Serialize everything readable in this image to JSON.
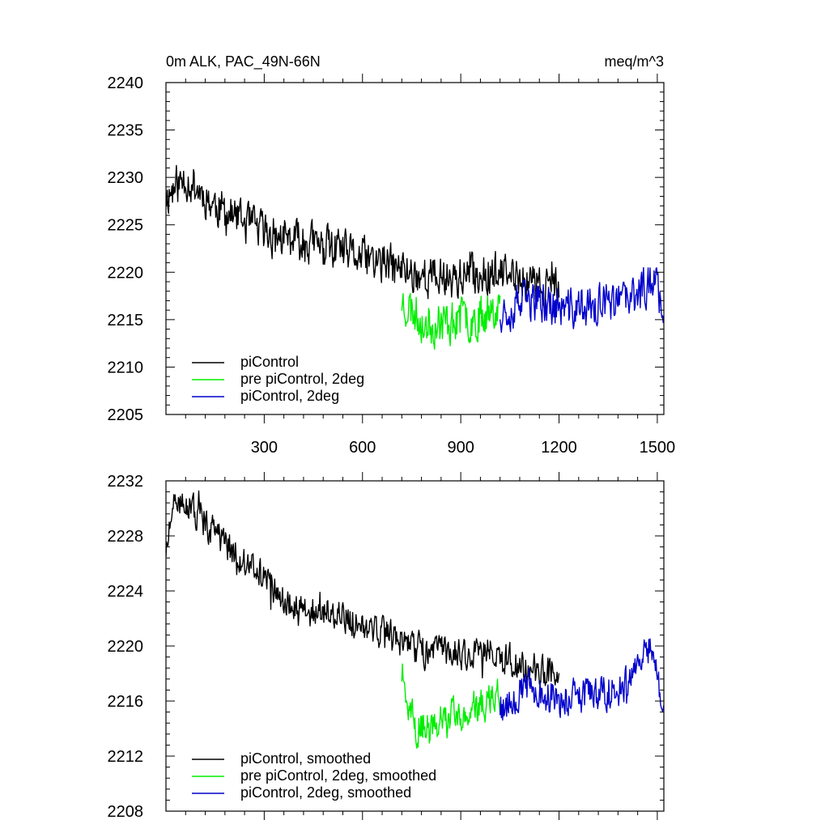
{
  "chart_data": [
    {
      "type": "line",
      "title_left": "0m ALK, PAC_49N-66N",
      "title_right": "meq/m^3",
      "xlim": [
        0,
        1520
      ],
      "ylim": [
        2205,
        2240
      ],
      "yticks": [
        2205,
        2210,
        2215,
        2220,
        2225,
        2230,
        2235,
        2240
      ],
      "xticks": [
        300,
        600,
        900,
        1200,
        1500
      ],
      "show_xtick_labels": true,
      "legend_position": "bottom-left",
      "series": [
        {
          "name": "piControl",
          "color": "#000000",
          "x_range": [
            0,
            1200
          ],
          "anchors": [
            [
              0,
              2228
            ],
            [
              60,
              2230
            ],
            [
              150,
              2227
            ],
            [
              250,
              2225
            ],
            [
              350,
              2223.5
            ],
            [
              450,
              2223
            ],
            [
              550,
              2222
            ],
            [
              650,
              2221
            ],
            [
              700,
              2220.5
            ],
            [
              800,
              2219.5
            ],
            [
              900,
              2219.5
            ],
            [
              1000,
              2220
            ],
            [
              1100,
              2219
            ],
            [
              1200,
              2218
            ]
          ],
          "noise": 2.6,
          "seed": 11
        },
        {
          "name": "pre piControl, 2deg",
          "color": "#00ee00",
          "x_range": [
            720,
            1020
          ],
          "anchors": [
            [
              720,
              2217
            ],
            [
              800,
              2214.5
            ],
            [
              900,
              2215
            ],
            [
              960,
              2215.5
            ],
            [
              1020,
              2217
            ]
          ],
          "noise": 2.8,
          "seed": 23
        },
        {
          "name": "piControl, 2deg",
          "color": "#0000cc",
          "x_range": [
            1020,
            1520
          ],
          "anchors": [
            [
              1020,
              2216
            ],
            [
              1120,
              2217
            ],
            [
              1220,
              2216
            ],
            [
              1320,
              2216.5
            ],
            [
              1420,
              2217
            ],
            [
              1490,
              2219.5
            ],
            [
              1520,
              2216
            ]
          ],
          "noise": 2.6,
          "seed": 37
        }
      ]
    },
    {
      "type": "line",
      "title_left": "",
      "title_right": "",
      "xlim": [
        0,
        1520
      ],
      "ylim": [
        2208,
        2232
      ],
      "yticks": [
        2208,
        2212,
        2216,
        2220,
        2224,
        2228,
        2232
      ],
      "xticks": [
        300,
        600,
        900,
        1200,
        1500
      ],
      "show_xtick_labels": false,
      "legend_position": "bottom-left",
      "series": [
        {
          "name": "piControl, smoothed",
          "color": "#000000",
          "x_range": [
            0,
            1200
          ],
          "anchors": [
            [
              0,
              2227
            ],
            [
              30,
              2230.5
            ],
            [
              100,
              2229.5
            ],
            [
              200,
              2227
            ],
            [
              300,
              2225
            ],
            [
              400,
              2222.5
            ],
            [
              500,
              2222.5
            ],
            [
              600,
              2221.5
            ],
            [
              700,
              2220.5
            ],
            [
              800,
              2219.5
            ],
            [
              900,
              2219.5
            ],
            [
              1000,
              2219.5
            ],
            [
              1100,
              2218.5
            ],
            [
              1200,
              2218
            ]
          ],
          "noise": 1.4,
          "seed": 51
        },
        {
          "name": "pre piControl, 2deg, smoothed",
          "color": "#00ee00",
          "x_range": [
            720,
            1020
          ],
          "anchors": [
            [
              720,
              2218
            ],
            [
              760,
              2214
            ],
            [
              850,
              2214.5
            ],
            [
              950,
              2215.5
            ],
            [
              1020,
              2216.5
            ]
          ],
          "noise": 1.6,
          "seed": 63
        },
        {
          "name": "piControl, 2deg, smoothed",
          "color": "#0000cc",
          "x_range": [
            1020,
            1520
          ],
          "anchors": [
            [
              1020,
              2215.5
            ],
            [
              1100,
              2217
            ],
            [
              1200,
              2216
            ],
            [
              1300,
              2216.5
            ],
            [
              1400,
              2217
            ],
            [
              1480,
              2220
            ],
            [
              1520,
              2215.5
            ]
          ],
          "noise": 1.5,
          "seed": 79
        }
      ]
    }
  ]
}
